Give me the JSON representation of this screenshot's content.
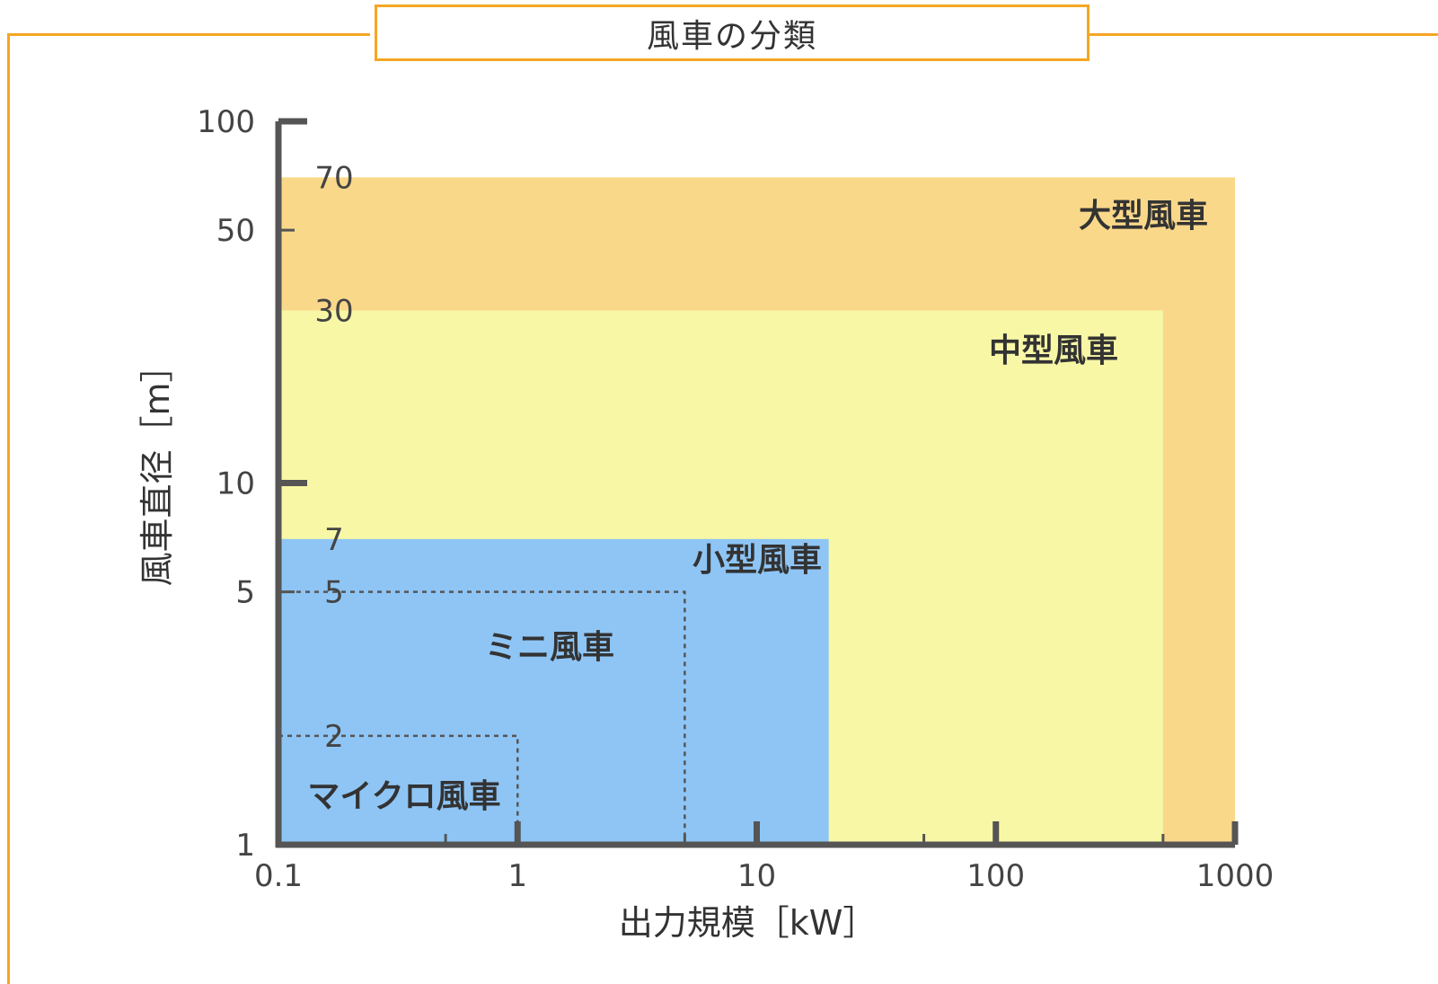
{
  "title": "風車の分類",
  "colors": {
    "frame": "#f5a623",
    "large": "#fad88a",
    "medium": "#f7f7a6",
    "small": "#8ec5f5",
    "axis": "#555555"
  },
  "chart_data": {
    "type": "area",
    "xscale": "log",
    "yscale": "log",
    "xlabel": "出力規模［kW］",
    "ylabel": "風車直径［m］",
    "xlim": [
      0.1,
      1000
    ],
    "ylim": [
      1,
      100
    ],
    "x_ticks": [
      "0.1",
      "1",
      "10",
      "100",
      "1000"
    ],
    "y_ticks": [
      "1",
      "5",
      "10",
      "50",
      "100"
    ],
    "categories": [
      {
        "name": "大型風車",
        "x_max_kw": 1000,
        "y_max_m": 70,
        "y_label": "70",
        "style": "filled"
      },
      {
        "name": "中型風車",
        "x_max_kw": 500,
        "y_max_m": 30,
        "y_label": "30",
        "style": "filled"
      },
      {
        "name": "小型風車",
        "x_max_kw": 20,
        "y_max_m": 7,
        "y_label": "7",
        "style": "filled"
      },
      {
        "name": "ミニ風車",
        "x_max_kw": 5,
        "y_max_m": 5,
        "y_label": "5",
        "style": "dashed"
      },
      {
        "name": "マイクロ風車",
        "x_max_kw": 1,
        "y_max_m": 2,
        "y_label": "2",
        "style": "dashed"
      }
    ]
  }
}
